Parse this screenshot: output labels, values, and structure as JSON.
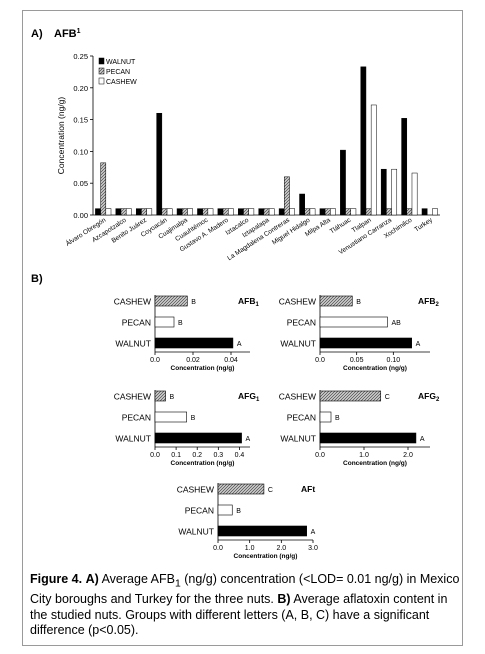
{
  "figure": {
    "panel_a_label": "A)",
    "panel_a_title": "AFB",
    "panel_a_title_sup": "1",
    "panel_b_label": "B)",
    "caption": {
      "fig": "Figure 4.",
      "a_marker": "A)",
      "a_text_pre": " Average AFB",
      "a_text_sub": "1",
      "a_text_post": " (ng/g) concentration (<LOD= 0.01 ng/g) in Mexico City boroughs and Turkey for the three nuts.",
      "b_marker": "B)",
      "b_text": " Average aflatoxin content in the studied nuts. Groups with different letters (A, B, C) have a significant difference (p<0.05)."
    }
  },
  "colors": {
    "walnut": "#000000",
    "pecan": "#9a9a9a",
    "cashew": "#ffffff",
    "stroke": "#000000"
  },
  "chart_data": [
    {
      "id": "A",
      "type": "bar",
      "ylabel": "Concentration (ng/g)",
      "ylim": [
        0,
        0.25
      ],
      "yticks": [
        "0.00",
        "0.05",
        "0.10",
        "0.15",
        "0.20",
        "0.25"
      ],
      "legend": [
        "WALNUT",
        "PECAN",
        "CASHEW"
      ],
      "legend_position": "top-left",
      "categories": [
        "Álvaro Obregón",
        "Azcapotzalco",
        "Benito Juárez",
        "Coyoacán",
        "Cuajimalpa",
        "Cuauhtémoc",
        "Gustavo A. Madero",
        "Iztacalco",
        "Iztapalapa",
        "La Magdalena Contreras",
        "Miguel Hidalgo",
        "Milpa Alta",
        "Tláhuac",
        "Tlalpan",
        "Venustiano Carranza",
        "Xochimilco",
        "Turkey"
      ],
      "series": [
        {
          "name": "WALNUT",
          "values": [
            0.01,
            0.01,
            0.01,
            0.16,
            0.01,
            0.01,
            0.01,
            0.01,
            0.01,
            0.01,
            0.033,
            0.01,
            0.102,
            0.233,
            0.072,
            0.152,
            0.01
          ]
        },
        {
          "name": "PECAN",
          "values": [
            0.082,
            0.01,
            0.01,
            0.01,
            0.01,
            0.01,
            0.01,
            0.01,
            0.01,
            0.06,
            0.01,
            0.01,
            0.01,
            0.01,
            0.01,
            0.01,
            null
          ]
        },
        {
          "name": "CASHEW",
          "values": [
            0.01,
            0.01,
            0.01,
            0.01,
            0.01,
            0.01,
            0.01,
            0.01,
            0.01,
            0.01,
            0.01,
            0.01,
            0.01,
            0.173,
            0.072,
            0.066,
            0.01
          ]
        }
      ]
    },
    {
      "id": "AFB1",
      "type": "bar",
      "orientation": "horizontal",
      "title": "AFB",
      "title_sub": "1",
      "xlabel": "Concentration (ng/g)",
      "xlim": [
        0,
        0.05
      ],
      "xticks": [
        "0.0",
        "0.02",
        "0.04"
      ],
      "xtick_values": [
        0,
        0.02,
        0.04
      ],
      "categories": [
        "CASHEW",
        "PECAN",
        "WALNUT"
      ],
      "values": [
        0.017,
        0.01,
        0.041
      ],
      "letters": [
        "B",
        "B",
        "A"
      ]
    },
    {
      "id": "AFB2",
      "type": "bar",
      "orientation": "horizontal",
      "title": "AFB",
      "title_sub": "2",
      "xlabel": "Concentration (ng/g)",
      "xlim": [
        0,
        0.15
      ],
      "xticks": [
        "0.0",
        "0.05",
        "0.10"
      ],
      "xtick_values": [
        0,
        0.05,
        0.1
      ],
      "categories": [
        "CASHEW",
        "PECAN",
        "WALNUT"
      ],
      "values": [
        0.044,
        0.092,
        0.125
      ],
      "letters": [
        "B",
        "AB",
        "A"
      ]
    },
    {
      "id": "AFG1",
      "type": "bar",
      "orientation": "horizontal",
      "title": "AFG",
      "title_sub": "1",
      "xlabel": "Concentration (ng/g)",
      "xlim": [
        0,
        0.45
      ],
      "xticks": [
        "0.0",
        "0.1",
        "0.2",
        "0.3",
        "0.4"
      ],
      "xtick_values": [
        0,
        0.1,
        0.2,
        0.3,
        0.4
      ],
      "categories": [
        "CASHEW",
        "PECAN",
        "WALNUT"
      ],
      "values": [
        0.05,
        0.15,
        0.41
      ],
      "letters": [
        "B",
        "B",
        "A"
      ]
    },
    {
      "id": "AFG2",
      "type": "bar",
      "orientation": "horizontal",
      "title": "AFG",
      "title_sub": "2",
      "xlabel": "Concentration (ng/g)",
      "xlim": [
        0,
        2.5
      ],
      "xticks": [
        "0.0",
        "1.0",
        "2.0"
      ],
      "xtick_values": [
        0,
        1.0,
        2.0
      ],
      "categories": [
        "CASHEW",
        "PECAN",
        "WALNUT"
      ],
      "values": [
        1.38,
        0.25,
        2.18
      ],
      "letters": [
        "C",
        "B",
        "A"
      ]
    },
    {
      "id": "AFt",
      "type": "bar",
      "orientation": "horizontal",
      "title": "AFt",
      "title_sub": "",
      "xlabel": "Concentration (ng/g)",
      "xlim": [
        0,
        3.0
      ],
      "xticks": [
        "0.0",
        "1.0",
        "2.0",
        "3.0"
      ],
      "xtick_values": [
        0,
        1.0,
        2.0,
        3.0
      ],
      "categories": [
        "CASHEW",
        "PECAN",
        "WALNUT"
      ],
      "values": [
        1.45,
        0.45,
        2.8
      ],
      "letters": [
        "C",
        "B",
        "A"
      ]
    }
  ]
}
